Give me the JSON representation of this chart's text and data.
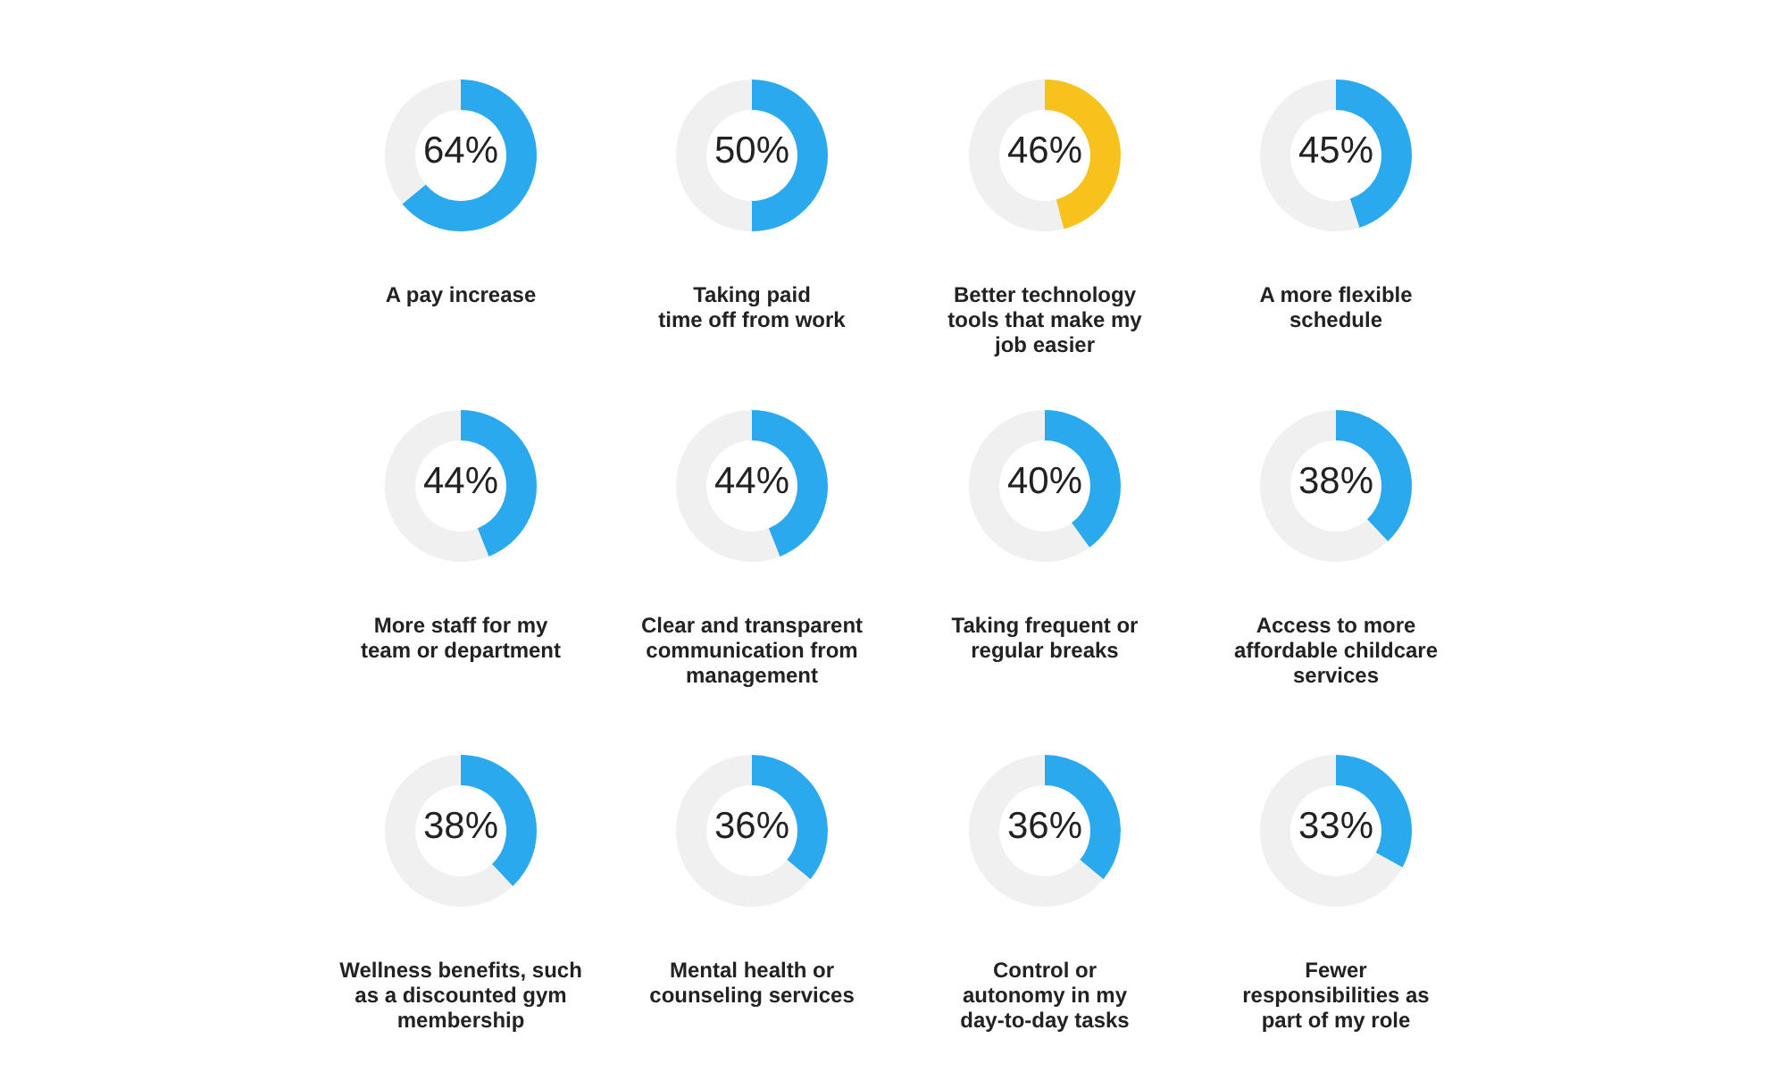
{
  "chart_data": [
    {
      "type": "donut",
      "title": "A pay increase",
      "categories": [
        null,
        null
      ],
      "values": [
        64,
        36
      ],
      "colors": [
        "#2aa9ee",
        "#f0f0f0"
      ],
      "value_labels": [
        "64%",
        null
      ]
    },
    {
      "type": "donut",
      "title": "Taking paid\ntime off from work",
      "categories": [
        null,
        null
      ],
      "values": [
        50,
        50
      ],
      "colors": [
        "#2aa9ee",
        "#f0f0f0"
      ],
      "value_labels": [
        "50%",
        null
      ]
    },
    {
      "type": "donut",
      "title": "Better technology\ntools that make my\njob easier",
      "categories": [
        null,
        null
      ],
      "values": [
        46,
        54
      ],
      "colors": [
        "#f7c21b",
        "#f0f0f0"
      ],
      "value_labels": [
        "46%",
        null
      ]
    },
    {
      "type": "donut",
      "title": "A more flexible\nschedule",
      "categories": [
        null,
        null
      ],
      "values": [
        45,
        55
      ],
      "colors": [
        "#2aa9ee",
        "#f0f0f0"
      ],
      "value_labels": [
        "45%",
        null
      ]
    },
    {
      "type": "donut",
      "title": "More staff for my\nteam or department",
      "categories": [
        null,
        null
      ],
      "values": [
        44,
        56
      ],
      "colors": [
        "#2aa9ee",
        "#f0f0f0"
      ],
      "value_labels": [
        "44%",
        null
      ]
    },
    {
      "type": "donut",
      "title": "Clear and transparent\ncommunication from\nmanagement",
      "categories": [
        null,
        null
      ],
      "values": [
        44,
        56
      ],
      "colors": [
        "#2aa9ee",
        "#f0f0f0"
      ],
      "value_labels": [
        "44%",
        null
      ]
    },
    {
      "type": "donut",
      "title": "Taking frequent or\nregular breaks",
      "categories": [
        null,
        null
      ],
      "values": [
        40,
        60
      ],
      "colors": [
        "#2aa9ee",
        "#f0f0f0"
      ],
      "value_labels": [
        "40%",
        null
      ]
    },
    {
      "type": "donut",
      "title": "Access to more\naffordable childcare\nservices",
      "categories": [
        null,
        null
      ],
      "values": [
        38,
        62
      ],
      "colors": [
        "#2aa9ee",
        "#f0f0f0"
      ],
      "value_labels": [
        "38%",
        null
      ]
    },
    {
      "type": "donut",
      "title": "Wellness benefits, such\nas a discounted gym\nmembership",
      "categories": [
        null,
        null
      ],
      "values": [
        38,
        62
      ],
      "colors": [
        "#2aa9ee",
        "#f0f0f0"
      ],
      "value_labels": [
        "38%",
        null
      ]
    },
    {
      "type": "donut",
      "title": "Mental health or\ncounseling services",
      "categories": [
        null,
        null
      ],
      "values": [
        36,
        64
      ],
      "colors": [
        "#2aa9ee",
        "#f0f0f0"
      ],
      "value_labels": [
        "36%",
        null
      ]
    },
    {
      "type": "donut",
      "title": "Control or\nautonomy in my\nday-to-day tasks",
      "categories": [
        null,
        null
      ],
      "values": [
        36,
        64
      ],
      "colors": [
        "#2aa9ee",
        "#f0f0f0"
      ],
      "value_labels": [
        "36%",
        null
      ]
    },
    {
      "type": "donut",
      "title": "Fewer\nresponsibilities as\npart of my role",
      "categories": [
        null,
        null
      ],
      "values": [
        33,
        67
      ],
      "colors": [
        "#2aa9ee",
        "#f0f0f0"
      ],
      "value_labels": [
        "33%",
        null
      ]
    }
  ]
}
